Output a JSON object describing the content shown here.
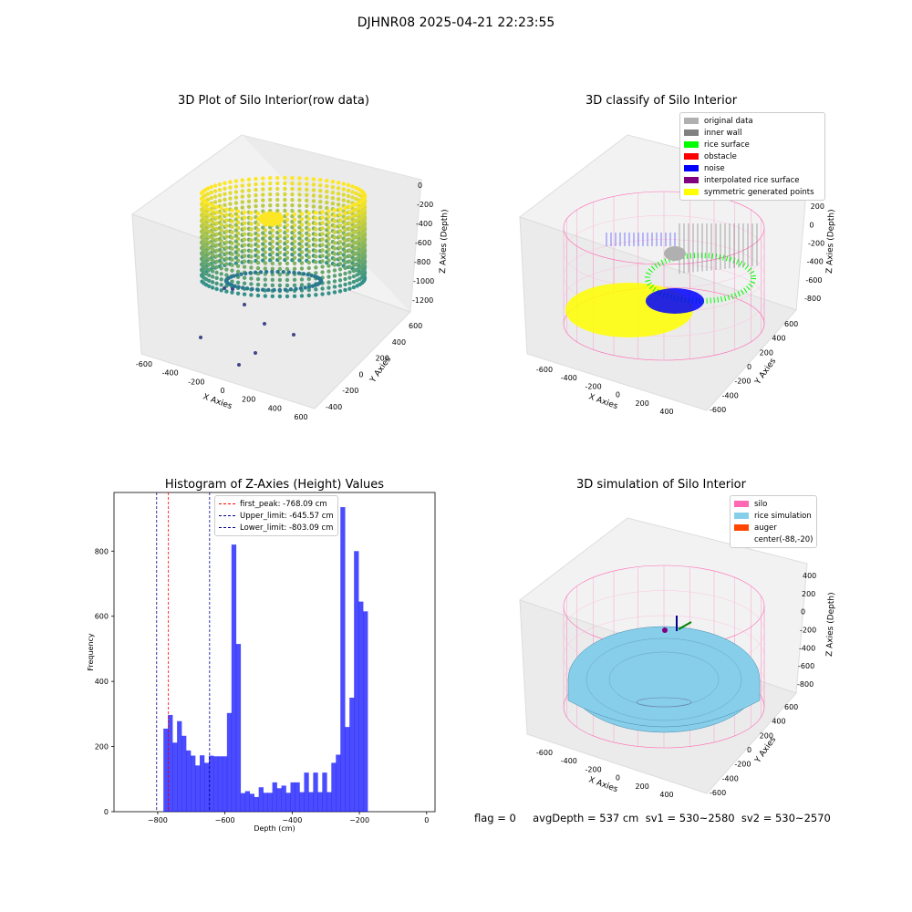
{
  "suptitle": "DJHNR08 2025-04-21 22:23:55",
  "panels": {
    "raw": {
      "title": "3D Plot of Silo Interior(row data)",
      "xlabel": "X Axies",
      "ylabel": "Y Axies",
      "zlabel": "Z Axies (Depth)",
      "xticks": [
        "-600",
        "-400",
        "-200",
        "0",
        "200",
        "400",
        "600"
      ],
      "yticks": [
        "-400",
        "-200",
        "0",
        "200",
        "400",
        "600"
      ],
      "zticks": [
        "0",
        "-200",
        "-400",
        "-600",
        "-800",
        "-1000",
        "-1200"
      ]
    },
    "classify": {
      "title": "3D classify of Silo Interior",
      "xlabel": "X Axies",
      "ylabel": "Y Axies",
      "zlabel": "Z Axies (Depth)",
      "xticks": [
        "-600",
        "-400",
        "-200",
        "0",
        "200",
        "400"
      ],
      "yticks": [
        "-600",
        "-400",
        "-200",
        "0",
        "200",
        "400",
        "600"
      ],
      "zticks": [
        "400",
        "200",
        "0",
        "-200",
        "-400",
        "-600",
        "-800"
      ],
      "legend": [
        {
          "label": "original data",
          "color": "#b0b0b0"
        },
        {
          "label": "inner wall",
          "color": "#808080"
        },
        {
          "label": "rice surface",
          "color": "#00ff00"
        },
        {
          "label": "obstacle",
          "color": "#ff0000"
        },
        {
          "label": "noise",
          "color": "#0000ff"
        },
        {
          "label": "interpolated rice surface",
          "color": "#800080"
        },
        {
          "label": "symmetric generated points",
          "color": "#ffff00"
        }
      ]
    },
    "simulation": {
      "title": "3D simulation of Silo Interior",
      "xlabel": "X Axies",
      "ylabel": "Y Axies",
      "zlabel": "Z Axies (Depth)",
      "xticks": [
        "-600",
        "-400",
        "-200",
        "0",
        "200",
        "400"
      ],
      "yticks": [
        "-600",
        "-400",
        "-200",
        "0",
        "200",
        "400",
        "600"
      ],
      "zticks": [
        "400",
        "200",
        "0",
        "-200",
        "-400",
        "-600",
        "-800"
      ],
      "legend": [
        {
          "label": "silo",
          "color": "#ff69b4"
        },
        {
          "label": "rice simulation",
          "color": "#87ceeb"
        },
        {
          "label": "auger",
          "color": "#ff4500"
        },
        {
          "label": "center(-88,-20)",
          "color": "#ffffff"
        }
      ]
    }
  },
  "chart_data": [
    {
      "type": "bar",
      "title": "Histogram of Z-Axies (Height) Values",
      "xlabel": "Depth (cm)",
      "ylabel": "Frequency",
      "xlim": [
        -930,
        25
      ],
      "ylim": [
        0,
        980
      ],
      "xticks": [
        -800,
        -600,
        -400,
        -200,
        0
      ],
      "yticks": [
        0,
        200,
        400,
        600,
        800
      ],
      "bin_width": 13.5,
      "bin_start": -783,
      "values": [
        255,
        297,
        212,
        278,
        233,
        188,
        172,
        142,
        173,
        150,
        172,
        170,
        170,
        170,
        303,
        820,
        515,
        57,
        63,
        55,
        45,
        75,
        58,
        58,
        90,
        72,
        80,
        58,
        90,
        90,
        60,
        120,
        60,
        120,
        60,
        120,
        60,
        150,
        175,
        935,
        260,
        350,
        800,
        645,
        615
      ],
      "color": "#0000ff",
      "lines": [
        {
          "label": "first_peak: -768.09 cm",
          "x": -768.09,
          "color": "#ff0000"
        },
        {
          "label": "Upper_limit: -645.57 cm",
          "x": -645.57,
          "color": "#00008b"
        },
        {
          "label": "Lower_limit: -803.09 cm",
          "x": -803.09,
          "color": "#00008b"
        }
      ]
    }
  ],
  "footer": "flag = 0     avgDepth = 537 cm  sv1 = 530~2580  sv2 = 530~2570"
}
